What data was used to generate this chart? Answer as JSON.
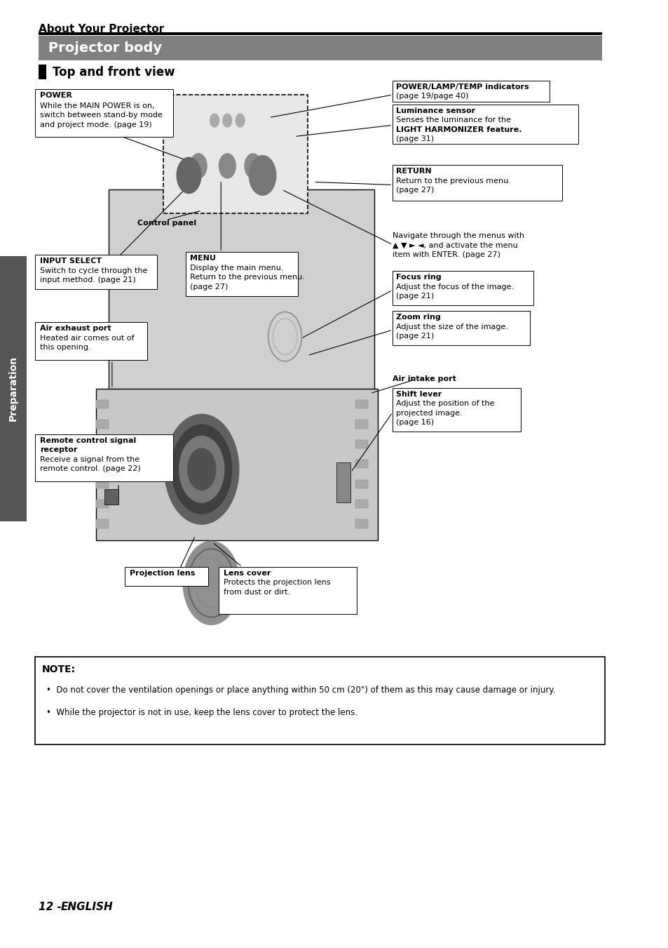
{
  "page_bg": "#ffffff",
  "top_label": "About Your Projector",
  "section_title": "Projector body",
  "section_title_bg": "#808080",
  "section_title_color": "#ffffff",
  "subsection_title": "Top and front view",
  "page_number": "12 - ",
  "page_number_suffix": "ENGLISH",
  "note_title": "NOTE:",
  "note_bullets": [
    "Do not cover the ventilation openings or place anything within 50 cm (20\") of them as this may cause damage or injury.",
    "While the projector is not in use, keep the lens cover to protect the lens."
  ],
  "sidebar_text": "Preparation",
  "sidebar_bg": "#555555",
  "sidebar_color": "#ffffff"
}
